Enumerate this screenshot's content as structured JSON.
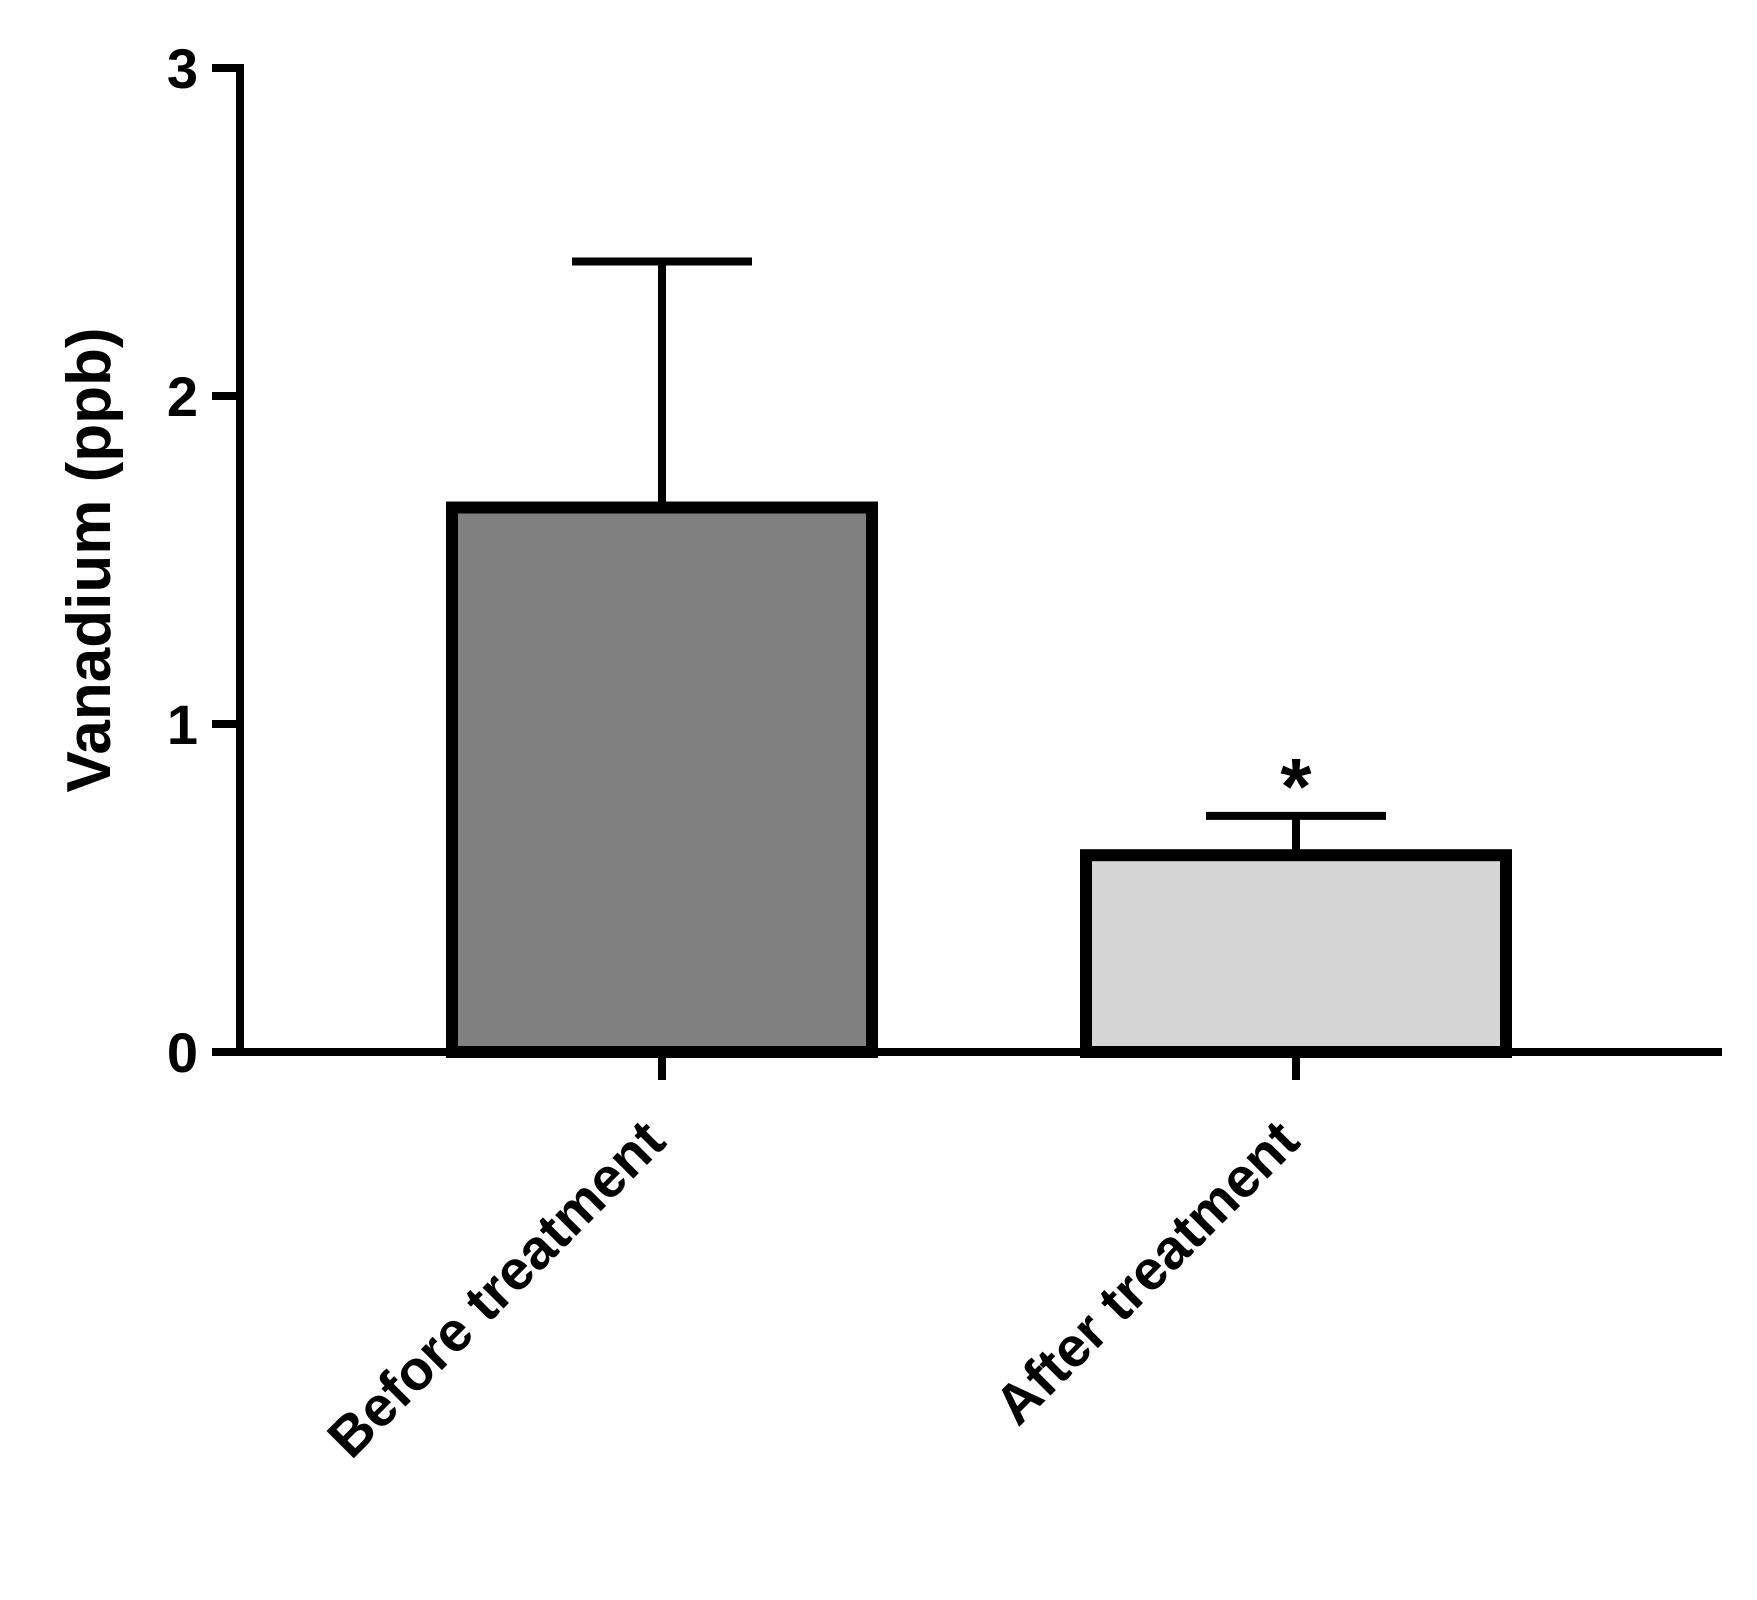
{
  "chart_data": {
    "type": "bar",
    "title": "",
    "xlabel": "",
    "ylabel": "Vanadium (ppb)",
    "ylim": [
      0,
      3
    ],
    "yticks": [
      0,
      1,
      2,
      3
    ],
    "ytick_labels": [
      "0",
      "1",
      "2",
      "3"
    ],
    "grid": false,
    "categories": [
      "Before treatment",
      "After treatment"
    ],
    "values": [
      1.66,
      0.6
    ],
    "error_upper": [
      0.75,
      0.12
    ],
    "bar_colors": [
      "#808080",
      "#d6d6d6"
    ],
    "annotations": [
      {
        "category": "After treatment",
        "text": "*"
      }
    ]
  }
}
